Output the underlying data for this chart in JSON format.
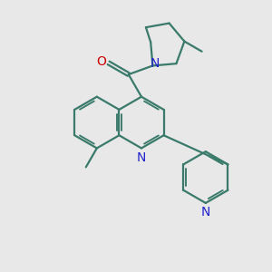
{
  "bg_color": "#e8e8e8",
  "bond_color": "#3a7a6a",
  "bond_width": 1.6,
  "n_color": "#2222cc",
  "o_color": "#cc0000",
  "font_size": 10,
  "fig_size": [
    3.0,
    3.0
  ],
  "dpi": 100,
  "xlim": [
    0,
    10
  ],
  "ylim": [
    0,
    10
  ]
}
